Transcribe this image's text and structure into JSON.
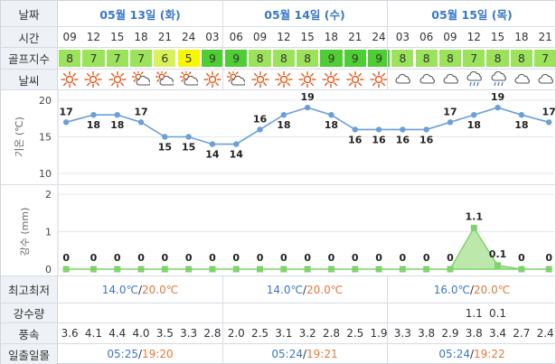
{
  "labels": {
    "date": "날짜",
    "time": "시간",
    "golf_index": "골프지수",
    "weather": "날씨",
    "temp_axis": "기온 (℃)",
    "rain_axis": "강수 (mm)",
    "minmax": "최고최저",
    "rainfall": "강수량",
    "wind": "풍속",
    "sun": "일출일몰"
  },
  "dates": [
    "05월 13일 (화)",
    "05월 14일 (수)",
    "05월 15일 (목)"
  ],
  "times": [
    "09",
    "12",
    "15",
    "18",
    "21",
    "24",
    "03",
    "06",
    "09",
    "12",
    "15",
    "18",
    "21",
    "24",
    "03",
    "06",
    "09",
    "12",
    "15",
    "18",
    "21"
  ],
  "golf_index": [
    "8",
    "7",
    "7",
    "7",
    "6",
    "5",
    "9",
    "9",
    "8",
    "8",
    "8",
    "9",
    "9",
    "9",
    "8",
    "8",
    "8",
    "7",
    "8",
    "8",
    "7"
  ],
  "weather_icons": [
    "sun-icon",
    "sun-icon",
    "sun-icon",
    "sun-cloud-icon",
    "sun-cloud-icon",
    "sun-cloud-icon",
    "sun-icon",
    "sun-cloud-icon",
    "sun-icon",
    "sun-icon",
    "sun-icon",
    "sun-icon",
    "sun-icon",
    "sun-icon",
    "cloud-icon",
    "cloud-icon",
    "cloud-icon",
    "rain-cloud-icon",
    "rain-cloud-icon",
    "cloud-icon",
    "cloud-icon"
  ],
  "golf_colors": {
    "5": "#f7f700",
    "6": "#d9f25a",
    "7": "#9be35a",
    "8": "#9be35a",
    "9": "#4fce34"
  },
  "chart_data": [
    {
      "type": "line",
      "x": [
        "09",
        "12",
        "15",
        "18",
        "21",
        "24",
        "03",
        "06",
        "09",
        "12",
        "15",
        "18",
        "21",
        "24",
        "03",
        "06",
        "09",
        "12",
        "15",
        "18",
        "21"
      ],
      "values": [
        17,
        18,
        18,
        17,
        15,
        15,
        14,
        14,
        16,
        18,
        19,
        18,
        16,
        16,
        16,
        16,
        17,
        18,
        19,
        18,
        17
      ],
      "ylim": [
        10,
        20
      ],
      "yticks": [
        "20",
        "15",
        "10"
      ],
      "ylabel": "기온 (℃)",
      "color": "#6a9fd9"
    },
    {
      "type": "area",
      "x": [
        "09",
        "12",
        "15",
        "18",
        "21",
        "24",
        "03",
        "06",
        "09",
        "12",
        "15",
        "18",
        "21",
        "24",
        "03",
        "06",
        "09",
        "12",
        "15",
        "18",
        "21"
      ],
      "values": [
        0,
        0,
        0,
        0,
        0,
        0,
        0,
        0,
        0,
        0,
        0,
        0,
        0,
        0,
        0,
        0,
        0,
        1.1,
        0.1,
        0,
        0
      ],
      "ylim": [
        0,
        2
      ],
      "yticks": [
        "2",
        "1",
        "0"
      ],
      "ylabel": "강수 (mm)",
      "color": "#7fd36b"
    }
  ],
  "minmax": [
    {
      "min": "14.0℃",
      "sep": "/",
      "max": "20.0℃"
    },
    {
      "min": "14.0℃",
      "sep": "/",
      "max": "20.0℃"
    },
    {
      "min": "16.0℃",
      "sep": "/",
      "max": "20.0℃"
    }
  ],
  "rainfall": [
    "",
    "",
    "",
    "",
    "",
    "",
    "",
    "",
    "",
    "",
    "",
    "",
    "",
    "",
    "",
    "",
    "",
    "1.1",
    "0.1",
    "",
    ""
  ],
  "wind": [
    "3.6",
    "4.1",
    "4.4",
    "4.0",
    "3.5",
    "3.3",
    "2.8",
    "2.0",
    "2.5",
    "3.1",
    "3.2",
    "2.8",
    "2.5",
    "1.9",
    "3.3",
    "3.8",
    "2.9",
    "3.8",
    "3.4",
    "2.7",
    "2.4"
  ],
  "sun": [
    {
      "rise": "05:25",
      "sep": "/",
      "set": "19:20"
    },
    {
      "rise": "05:24",
      "sep": "/",
      "set": "19:21"
    },
    {
      "rise": "05:24",
      "sep": "/",
      "set": "19:22"
    }
  ],
  "colors": {
    "min": "#3a77c9",
    "max": "#e2793a",
    "date": "#3a77c9"
  }
}
